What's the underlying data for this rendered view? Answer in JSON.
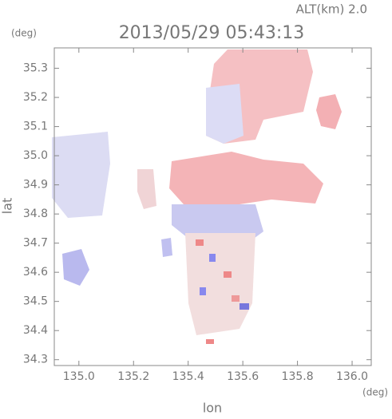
{
  "chart_data": {
    "type": "map",
    "title": "2013/05/29 05:43:13",
    "subtitle": "ALT(km) 2.0",
    "y_unit": "(deg)",
    "x_unit": "(deg)",
    "xlabel": "lon",
    "ylabel": "lat",
    "xlim": [
      134.91,
      136.07
    ],
    "ylim": [
      34.28,
      35.37
    ],
    "xticks": [
      {
        "value": 135,
        "label": "135.0"
      },
      135.2,
      135.4,
      135.6,
      135.8,
      {
        "value": 136,
        "label": "136.0"
      }
    ],
    "yticks": [
      34.3,
      34.4,
      34.5,
      34.6,
      34.7,
      34.8,
      34.9,
      {
        "value": 35,
        "label": "35.0"
      },
      35.1,
      35.2,
      35.3
    ]
  }
}
